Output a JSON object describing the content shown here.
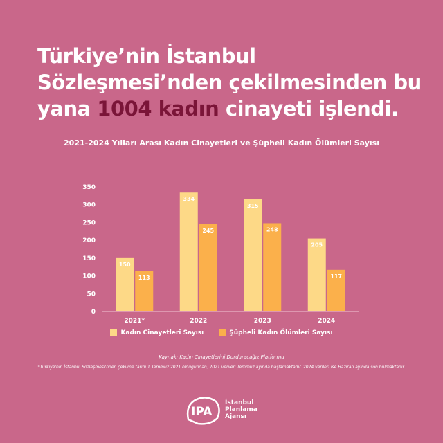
{
  "headline": {
    "before": "Türkiye’nin İstanbul Sözleşmesi’nden çekilmesinden bu yana ",
    "highlight": "1004 kadın",
    "after": " cinayeti işlendi."
  },
  "chart_data": {
    "type": "bar",
    "title": "2021-2024 Yılları Arası Kadın Cinayetleri ve Şüpheli Kadın Ölümleri Sayısı",
    "categories": [
      "2021*",
      "2022",
      "2023",
      "2024"
    ],
    "series": [
      {
        "name": "Kadın Cinayetleri Sayısı",
        "values": [
          150,
          334,
          315,
          205
        ],
        "color": "#fdd987"
      },
      {
        "name": "Şüpheli Kadın Ölümleri Sayısı",
        "values": [
          113,
          245,
          248,
          117
        ],
        "color": "#fbb04b"
      }
    ],
    "ylim": [
      0,
      350
    ],
    "yticks": [
      0,
      50,
      100,
      150,
      200,
      250,
      300,
      350
    ],
    "legend_position": "bottom"
  },
  "source": "Kaynak: Kadın Cinayetlerini Durduracağız Platformu",
  "note": "*Türkiye'nin İstanbul Sözleşmesi'nden çekilme tarihi 1 Temmuz 2021 olduğundan, 2021 verileri Temmuz ayında başlamaktadır. 2024 verileri ise Haziran ayında son bulmaktadır.",
  "logo": {
    "mark": "IPA",
    "text": "İstanbul\nPlanlama\nAjansı"
  }
}
